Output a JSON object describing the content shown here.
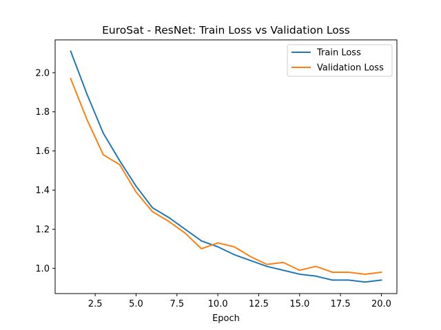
{
  "chart_data": {
    "type": "line",
    "title": "EuroSat - ResNet: Train Loss vs Validation Loss",
    "xlabel": "Epoch",
    "ylabel": "",
    "x": [
      1,
      2,
      3,
      4,
      5,
      6,
      7,
      8,
      9,
      10,
      11,
      12,
      13,
      14,
      15,
      16,
      17,
      18,
      19,
      20
    ],
    "xlim": [
      0.05,
      20.95
    ],
    "ylim": [
      0.871,
      2.168
    ],
    "xticks": [
      2.5,
      5.0,
      7.5,
      10.0,
      12.5,
      15.0,
      17.5,
      20.0
    ],
    "xtick_labels": [
      "2.5",
      "5.0",
      "7.5",
      "10.0",
      "12.5",
      "15.0",
      "17.5",
      "20.0"
    ],
    "yticks": [
      1.0,
      1.2,
      1.4,
      1.6,
      1.8,
      2.0
    ],
    "ytick_labels": [
      "1.0",
      "1.2",
      "1.4",
      "1.6",
      "1.8",
      "2.0"
    ],
    "grid": false,
    "legend_position": "top-right",
    "series": [
      {
        "name": "Train Loss",
        "color": "#1f77b4",
        "values": [
          2.11,
          1.89,
          1.69,
          1.55,
          1.42,
          1.31,
          1.26,
          1.2,
          1.14,
          1.11,
          1.07,
          1.04,
          1.01,
          0.99,
          0.97,
          0.96,
          0.94,
          0.94,
          0.93,
          0.94
        ]
      },
      {
        "name": "Validation Loss",
        "color": "#ff7f0e",
        "values": [
          1.97,
          1.76,
          1.58,
          1.53,
          1.39,
          1.29,
          1.24,
          1.18,
          1.1,
          1.13,
          1.11,
          1.06,
          1.02,
          1.03,
          0.99,
          1.01,
          0.98,
          0.98,
          0.97,
          0.98
        ]
      }
    ]
  }
}
